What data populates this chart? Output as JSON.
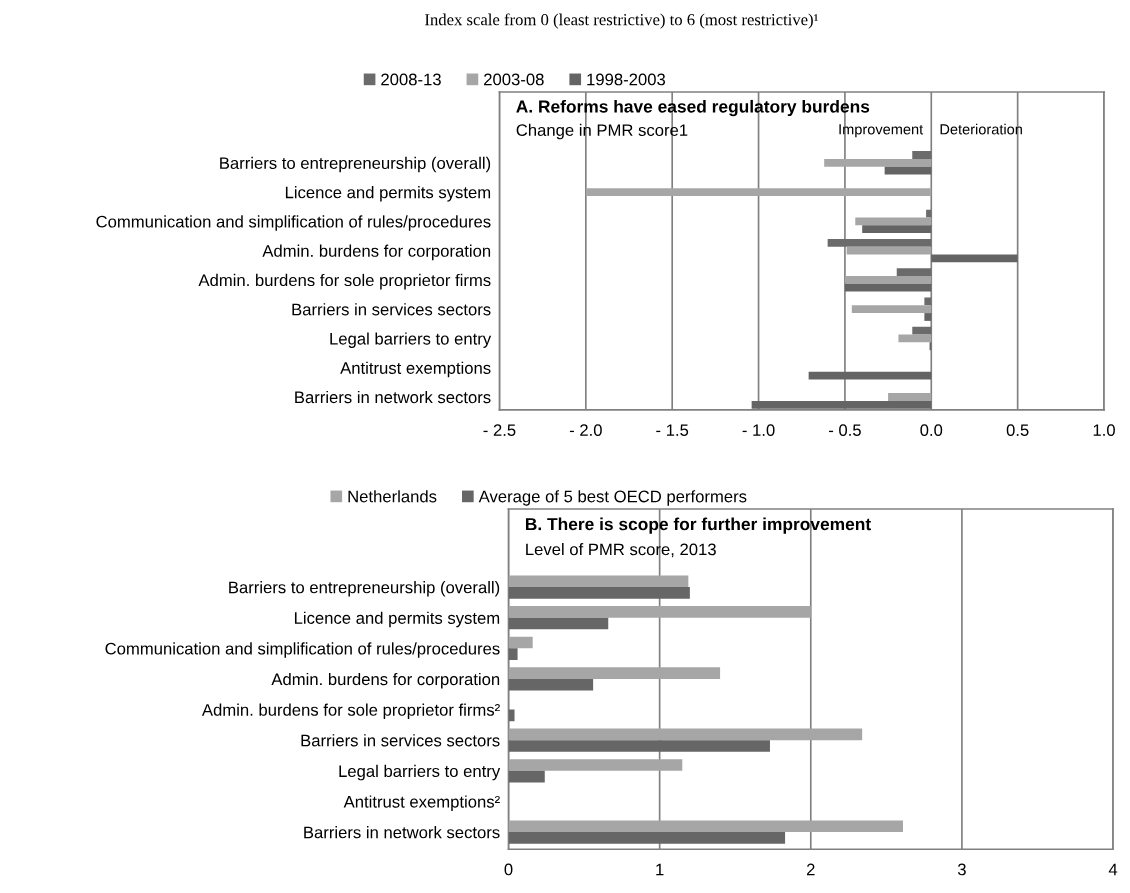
{
  "chart_data": [
    {
      "type": "bar",
      "orientation": "horizontal",
      "title": "A. Reforms have eased regulatory burdens",
      "subtitle": "Change in PMR score1",
      "annotations": [
        "Index scale from 0 (least restrictive) to 6 (most restrictive)¹",
        "Improvement",
        "Deterioration"
      ],
      "categories": [
        "Barriers to entrepreneurship (overall)",
        "Licence and permits system",
        "Communication and simplification of rules/procedures",
        "Admin. burdens for corporation",
        "Admin. burdens for sole proprietor firms",
        "Barriers in services sectors",
        "Legal barriers to entry",
        "Antitrust exemptions",
        "Barriers in network sectors"
      ],
      "series": [
        {
          "name": "2008-13",
          "color": "#6b6b6b",
          "values": [
            -0.11,
            null,
            -0.03,
            -0.6,
            -0.2,
            -0.04,
            -0.11,
            null,
            null
          ]
        },
        {
          "name": "2003-08",
          "color": "#a6a6a6",
          "values": [
            -0.62,
            -2.0,
            -0.44,
            -0.49,
            -0.5,
            -0.46,
            -0.19,
            null,
            -0.25
          ]
        },
        {
          "name": "1998-2003",
          "color": "#646464",
          "values": [
            -0.27,
            null,
            -0.4,
            0.5,
            -0.5,
            -0.04,
            -0.01,
            -0.71,
            -1.04
          ]
        }
      ],
      "xlim": [
        -2.5,
        1.0
      ],
      "xticks": [
        {
          "value": -2.5,
          "label": "- 2.5"
        },
        {
          "value": -2.0,
          "label": "- 2.0"
        },
        {
          "value": -1.5,
          "label": "- 1.5"
        },
        {
          "value": -1.0,
          "label": "- 1.0"
        },
        {
          "value": -0.5,
          "label": "- 0.5"
        },
        {
          "value": 0.0,
          "label": "0.0"
        },
        {
          "value": 0.5,
          "label": "0.5"
        },
        {
          "value": 1.0,
          "label": "1.0"
        }
      ],
      "grid": "x",
      "legend": "top"
    },
    {
      "type": "bar",
      "orientation": "horizontal",
      "title": "B. There is scope for further improvement",
      "subtitle": "Level of PMR score, 2013",
      "categories": [
        "Barriers to entrepreneurship (overall)",
        "Licence and permits system",
        "Communication and simplification of rules/procedures",
        "Admin. burdens for corporation",
        "Admin. burdens for sole proprietor firms²",
        "Barriers in services sectors",
        "Legal barriers to entry",
        "Antitrust exemptions²",
        "Barriers in network sectors"
      ],
      "series": [
        {
          "name": "Netherlands",
          "color": "#a6a6a6",
          "values": [
            1.19,
            2.0,
            0.16,
            1.4,
            null,
            2.34,
            1.15,
            null,
            2.61
          ]
        },
        {
          "name": "Average of 5 best OECD performers",
          "color": "#666666",
          "values": [
            1.2,
            0.66,
            0.06,
            0.56,
            0.04,
            1.73,
            0.24,
            null,
            1.83
          ]
        }
      ],
      "xlim": [
        0,
        4
      ],
      "xticks": [
        0,
        1,
        2,
        3,
        4
      ],
      "grid": "x",
      "legend": "top"
    }
  ]
}
